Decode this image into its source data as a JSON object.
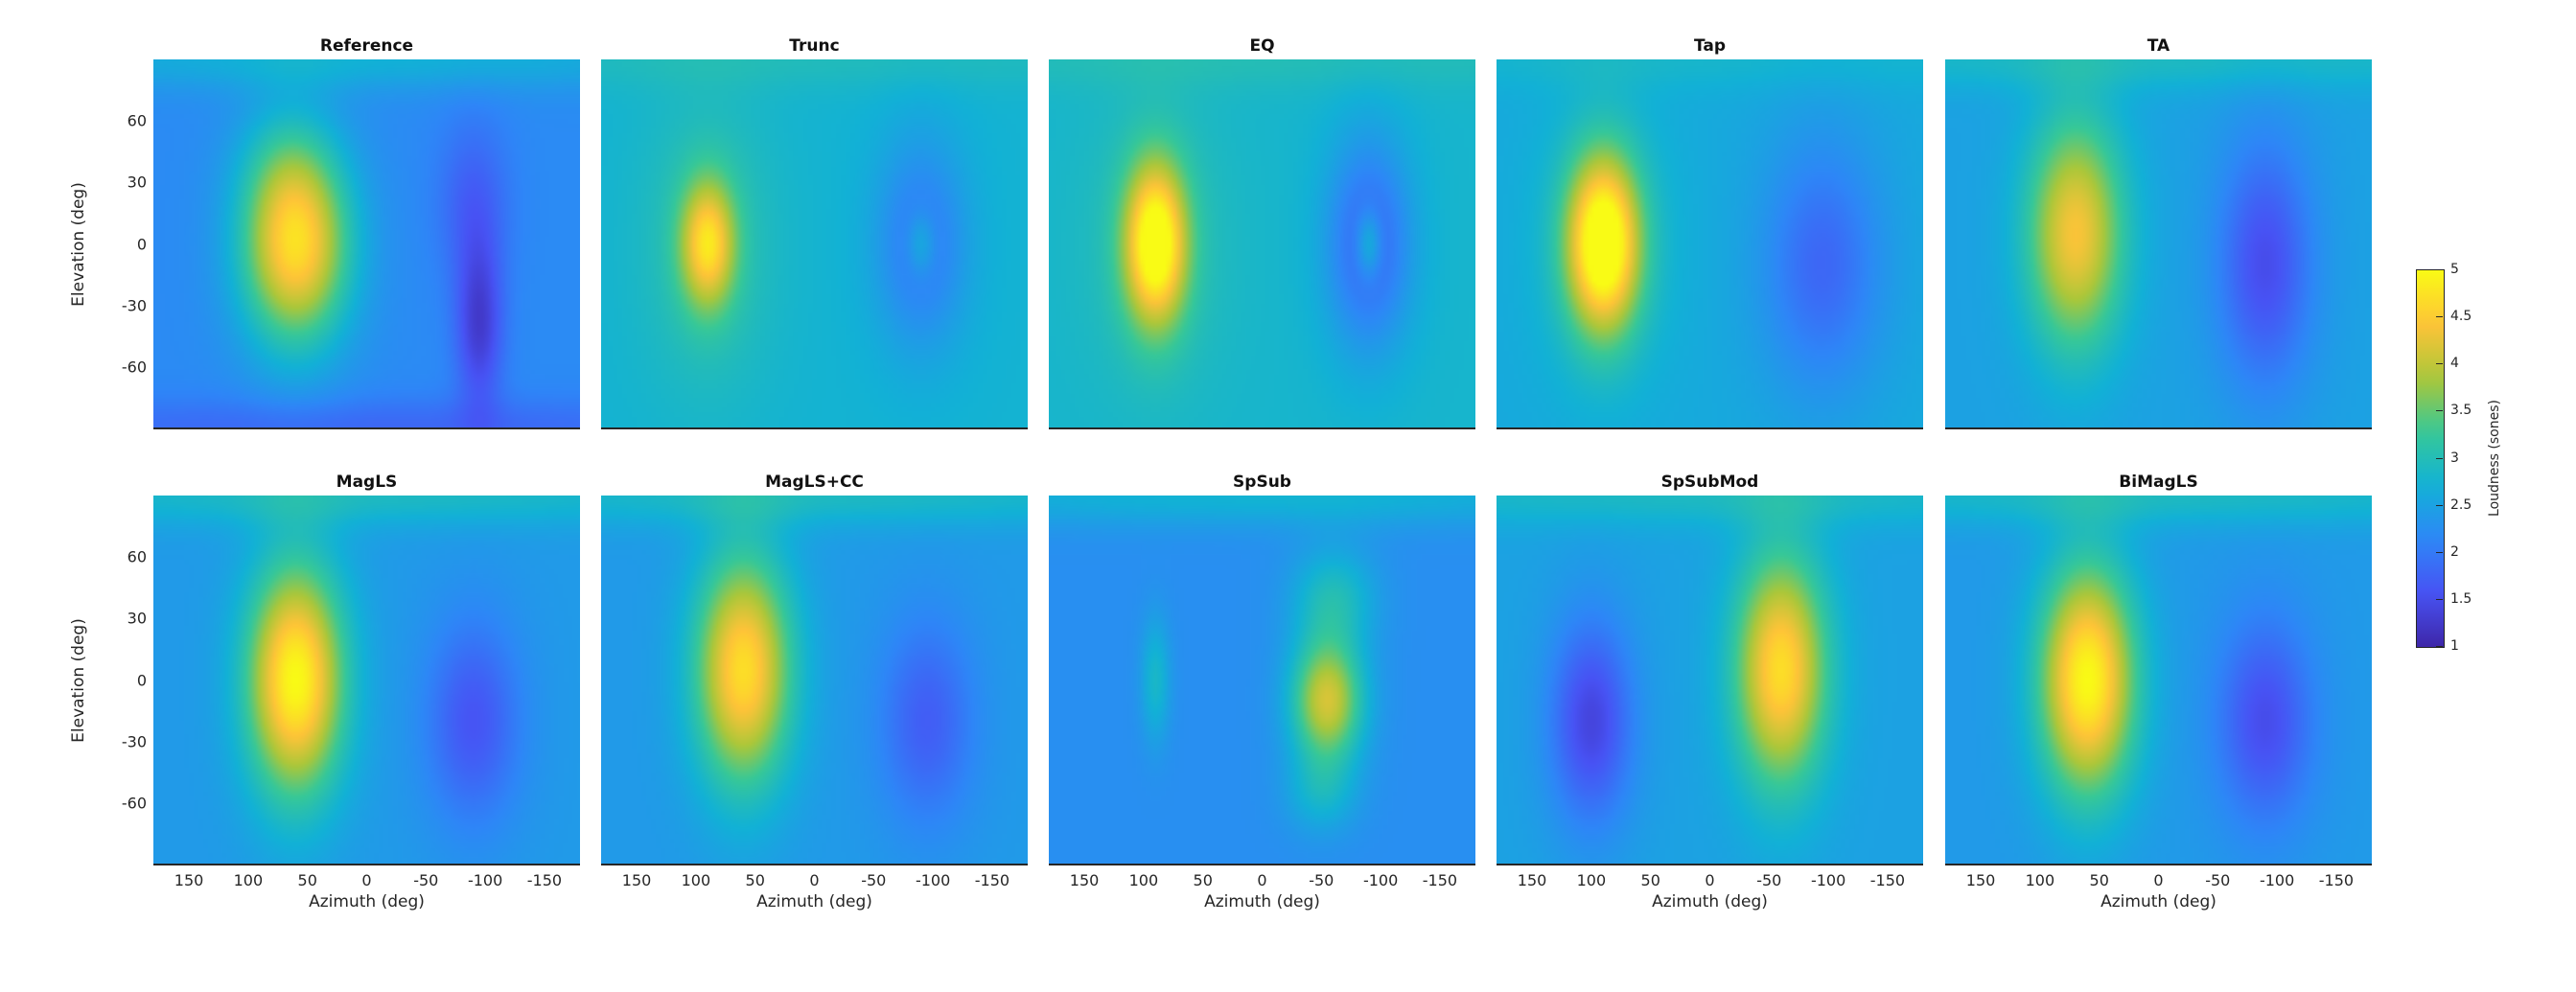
{
  "chart_data": {
    "type": "heatmap",
    "xlabel": "Azimuth (deg)",
    "ylabel": "Elevation (deg)",
    "xlim": [
      180,
      -180
    ],
    "ylim": [
      -90,
      90
    ],
    "xticks": [
      "150",
      "100",
      "50",
      "0",
      "-50",
      "-100",
      "-150"
    ],
    "yticks": [
      "60",
      "30",
      "0",
      "-30",
      "-60"
    ],
    "colorbar": {
      "label": "Loudness (sones)",
      "range": [
        1,
        5
      ],
      "ticks": [
        "5",
        "4.5",
        "4",
        "3.5",
        "3",
        "2.5",
        "2",
        "1.5",
        "1"
      ],
      "colormap": "parula"
    },
    "panels": [
      {
        "title": "Reference",
        "base": 2.2,
        "blobs": [
          [
            60,
            0,
            2.5,
            45,
            48
          ],
          [
            70,
            40,
            0.3,
            40,
            30
          ],
          [
            -95,
            -40,
            -0.9,
            20,
            40
          ],
          [
            -90,
            20,
            -0.5,
            30,
            40
          ],
          [
            0,
            -90,
            -0.4,
            400,
            15
          ],
          [
            0,
            90,
            0.5,
            400,
            15
          ]
        ]
      },
      {
        "title": "Trunc",
        "base": 2.75,
        "blobs": [
          [
            90,
            0,
            1.7,
            22,
            30
          ],
          [
            90,
            0,
            0.4,
            55,
            70
          ],
          [
            -90,
            0,
            -0.8,
            38,
            50
          ],
          [
            -90,
            0,
            0.6,
            12,
            16
          ],
          [
            0,
            90,
            0.2,
            400,
            15
          ]
        ]
      },
      {
        "title": "EQ",
        "base": 2.8,
        "blobs": [
          [
            90,
            0,
            2.4,
            25,
            38
          ],
          [
            90,
            0,
            0.3,
            60,
            70
          ],
          [
            -90,
            0,
            -1.1,
            35,
            50
          ],
          [
            -90,
            0,
            0.9,
            11,
            17
          ],
          [
            0,
            90,
            0.2,
            400,
            15
          ]
        ]
      },
      {
        "title": "Tap",
        "base": 2.6,
        "blobs": [
          [
            90,
            0,
            2.7,
            30,
            42
          ],
          [
            90,
            0,
            0.3,
            60,
            70
          ],
          [
            -95,
            -10,
            -0.8,
            50,
            60
          ],
          [
            0,
            90,
            0.2,
            400,
            15
          ]
        ]
      },
      {
        "title": "TA",
        "base": 2.5,
        "blobs": [
          [
            70,
            5,
            1.9,
            40,
            55
          ],
          [
            -90,
            -10,
            -1.0,
            40,
            60
          ],
          [
            0,
            90,
            0.4,
            400,
            15
          ]
        ]
      },
      {
        "title": "MagLS",
        "base": 2.4,
        "blobs": [
          [
            60,
            0,
            2.6,
            40,
            55
          ],
          [
            -90,
            -20,
            -0.8,
            40,
            50
          ],
          [
            0,
            90,
            0.5,
            400,
            15
          ]
        ]
      },
      {
        "title": "MagLS+CC",
        "base": 2.4,
        "blobs": [
          [
            60,
            5,
            2.3,
            40,
            55
          ],
          [
            -95,
            -20,
            -0.7,
            40,
            50
          ],
          [
            0,
            90,
            0.5,
            400,
            15
          ]
        ]
      },
      {
        "title": "SpSub",
        "base": 2.25,
        "blobs": [
          [
            -55,
            -10,
            1.9,
            30,
            30
          ],
          [
            -60,
            40,
            0.7,
            35,
            25
          ],
          [
            -50,
            -55,
            0.5,
            30,
            20
          ],
          [
            90,
            0,
            0.6,
            12,
            30
          ],
          [
            0,
            90,
            0.5,
            400,
            15
          ]
        ]
      },
      {
        "title": "SpSubMod",
        "base": 2.5,
        "blobs": [
          [
            -60,
            5,
            2.2,
            38,
            55
          ],
          [
            100,
            -20,
            -1.1,
            35,
            50
          ],
          [
            0,
            90,
            0.4,
            400,
            15
          ]
        ]
      },
      {
        "title": "BiMagLS",
        "base": 2.4,
        "blobs": [
          [
            60,
            0,
            2.6,
            40,
            55
          ],
          [
            -90,
            -20,
            -0.9,
            40,
            50
          ],
          [
            0,
            90,
            0.5,
            400,
            15
          ]
        ]
      }
    ]
  }
}
